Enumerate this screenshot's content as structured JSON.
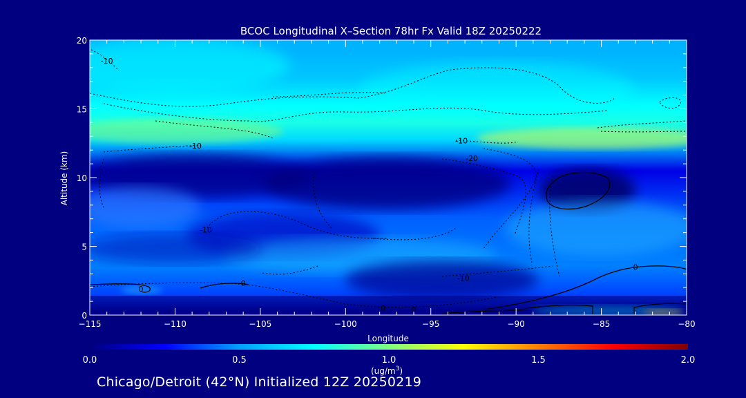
{
  "chart_data": {
    "type": "heatmap",
    "title": "BCOC Longitudinal X–Section 78hr  Fx Valid 18Z 20250222",
    "xlabel": "Longitude",
    "ylabel": "Altitude (km)",
    "xlim": [
      -115,
      -80
    ],
    "ylim": [
      0,
      20
    ],
    "x_ticks": [
      "−115",
      "−110",
      "−105",
      "−100",
      "−95",
      "−90",
      "−85",
      "−80"
    ],
    "y_ticks": [
      "0",
      "5",
      "10",
      "15",
      "20"
    ],
    "colorbar": {
      "range": [
        0.0,
        2.0
      ],
      "ticks": [
        "0.0",
        "0.5",
        "1.0",
        "1.5",
        "2.0"
      ],
      "unit_prefix": "(ug/m",
      "unit_exp": "3",
      "unit_suffix": ")",
      "colors": [
        "#000080",
        "#0000ff",
        "#00a0ff",
        "#00ffff",
        "#80ff80",
        "#ffff00",
        "#ff8000",
        "#ff0000",
        "#800000"
      ]
    },
    "field_bands": [
      {
        "alt": [
          0,
          0.6
        ],
        "value": 0.05
      },
      {
        "alt": [
          0.6,
          2.2
        ],
        "value": 0.35
      },
      {
        "alt": [
          2.2,
          5.0
        ],
        "value": 0.45
      },
      {
        "alt": [
          5.0,
          9.0
        ],
        "value": 0.4
      },
      {
        "alt": [
          9.0,
          12.0
        ],
        "value": 0.2
      },
      {
        "alt": [
          12.0,
          13.5
        ],
        "value": 0.65
      },
      {
        "alt": [
          13.5,
          14.5
        ],
        "value": 0.8
      },
      {
        "alt": [
          14.5,
          16.0
        ],
        "value": 0.75
      },
      {
        "alt": [
          16.0,
          18.5
        ],
        "value": 0.6
      },
      {
        "alt": [
          18.5,
          20.0
        ],
        "value": 0.55
      }
    ],
    "contour_labels": [
      {
        "text": "-10",
        "lon": -114,
        "alt": 18.5
      },
      {
        "text": "-10",
        "lon": -108.8,
        "alt": 12.3
      },
      {
        "text": "-10",
        "lon": -93.2,
        "alt": 12.7
      },
      {
        "text": "-20",
        "lon": -92.6,
        "alt": 11.4
      },
      {
        "text": "-10",
        "lon": -108.2,
        "alt": 6.2
      },
      {
        "text": "-10",
        "lon": -93.1,
        "alt": 2.7
      },
      {
        "text": "0",
        "lon": -112,
        "alt": 1.9
      },
      {
        "text": "0",
        "lon": -106,
        "alt": 2.3
      },
      {
        "text": "0",
        "lon": -97.8,
        "alt": 0.5
      },
      {
        "text": "0",
        "lon": -96,
        "alt": 0.4
      },
      {
        "text": "0",
        "lon": -83,
        "alt": 3.5
      }
    ]
  },
  "footer": {
    "prefix": "Chicago/Detroit (42",
    "degree": "°",
    "suffix": "N) Initialized 12Z 20250219"
  }
}
